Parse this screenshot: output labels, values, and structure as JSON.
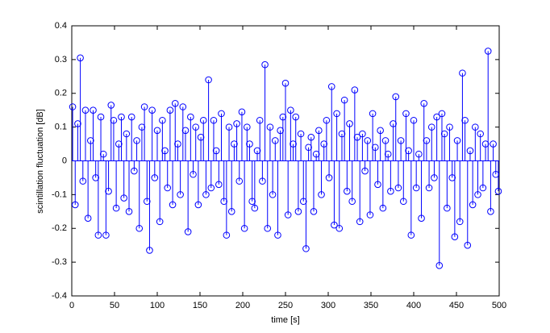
{
  "chart_data": {
    "type": "stem",
    "xlabel": "time [s]",
    "ylabel": "scintillation fluctuation [dB]",
    "color": "#0000ff",
    "xlim": [
      0,
      500
    ],
    "xticks": [
      0,
      50,
      100,
      150,
      200,
      250,
      300,
      350,
      400,
      450,
      500
    ],
    "ylim": [
      -0.4,
      0.4
    ],
    "yticks": [
      -0.4,
      -0.3,
      -0.2,
      -0.1,
      0,
      0.1,
      0.2,
      0.3,
      0.4
    ],
    "x": [
      1,
      4,
      7,
      10,
      13,
      16,
      19,
      22,
      25,
      28,
      31,
      34,
      37,
      40,
      43,
      46,
      49,
      52,
      55,
      58,
      61,
      64,
      67,
      70,
      73,
      76,
      79,
      82,
      85,
      88,
      91,
      94,
      97,
      100,
      103,
      106,
      109,
      112,
      115,
      118,
      121,
      124,
      127,
      130,
      133,
      136,
      139,
      142,
      145,
      148,
      151,
      154,
      157,
      160,
      163,
      166,
      169,
      172,
      175,
      178,
      181,
      184,
      187,
      190,
      193,
      196,
      199,
      202,
      205,
      208,
      211,
      214,
      217,
      220,
      223,
      226,
      229,
      232,
      235,
      238,
      241,
      244,
      247,
      250,
      253,
      256,
      259,
      262,
      265,
      268,
      271,
      274,
      277,
      280,
      283,
      286,
      289,
      292,
      295,
      298,
      301,
      304,
      307,
      310,
      313,
      316,
      319,
      322,
      325,
      328,
      331,
      334,
      337,
      340,
      343,
      346,
      349,
      352,
      355,
      358,
      361,
      364,
      367,
      370,
      373,
      376,
      379,
      382,
      385,
      388,
      391,
      394,
      397,
      400,
      403,
      406,
      409,
      412,
      415,
      418,
      421,
      424,
      427,
      430,
      433,
      436,
      439,
      442,
      445,
      448,
      451,
      454,
      457,
      460,
      463,
      466,
      469,
      472,
      475,
      478,
      481,
      484,
      487,
      490,
      493,
      496,
      499
    ],
    "values": [
      0.16,
      -0.13,
      0.11,
      0.305,
      -0.06,
      0.15,
      -0.17,
      0.06,
      0.15,
      -0.05,
      -0.22,
      0.13,
      0.02,
      -0.22,
      -0.09,
      0.165,
      0.12,
      -0.14,
      0.05,
      0.13,
      -0.11,
      0.08,
      -0.15,
      0.13,
      -0.03,
      0.06,
      -0.2,
      0.1,
      0.16,
      -0.12,
      -0.265,
      0.15,
      -0.05,
      0.09,
      -0.18,
      0.12,
      0.03,
      -0.08,
      0.15,
      -0.13,
      0.17,
      0.05,
      -0.1,
      0.16,
      0.09,
      -0.21,
      0.13,
      -0.04,
      0.1,
      -0.13,
      0.07,
      0.12,
      -0.1,
      0.24,
      -0.08,
      0.12,
      0.03,
      -0.07,
      0.14,
      -0.12,
      -0.22,
      0.1,
      -0.15,
      0.05,
      0.11,
      -0.06,
      0.145,
      -0.2,
      0.1,
      0.05,
      -0.12,
      -0.14,
      0.03,
      0.12,
      -0.06,
      0.285,
      -0.2,
      0.1,
      -0.1,
      0.06,
      -0.22,
      0.09,
      0.13,
      0.23,
      -0.16,
      0.15,
      0.05,
      0.13,
      -0.15,
      0.08,
      -0.12,
      -0.26,
      0.04,
      0.07,
      -0.15,
      0.02,
      0.09,
      -0.1,
      0.05,
      0.12,
      -0.05,
      0.22,
      -0.19,
      0.14,
      -0.2,
      0.08,
      0.18,
      -0.09,
      0.11,
      -0.12,
      0.21,
      0.07,
      -0.18,
      0.08,
      -0.03,
      0.06,
      -0.16,
      0.14,
      0.04,
      -0.07,
      0.09,
      -0.14,
      0.06,
      0.02,
      -0.09,
      0.11,
      0.19,
      -0.08,
      0.06,
      -0.12,
      0.14,
      0.03,
      -0.22,
      0.12,
      -0.08,
      0.02,
      -0.17,
      0.17,
      0.06,
      -0.08,
      0.1,
      -0.05,
      0.13,
      -0.31,
      0.14,
      0.08,
      -0.14,
      0.1,
      -0.05,
      -0.225,
      0.06,
      -0.18,
      0.26,
      0.12,
      -0.25,
      0.03,
      -0.13,
      0.1,
      -0.1,
      0.08,
      -0.08,
      0.05,
      0.325,
      -0.15,
      0.05,
      -0.04,
      -0.09
    ]
  }
}
